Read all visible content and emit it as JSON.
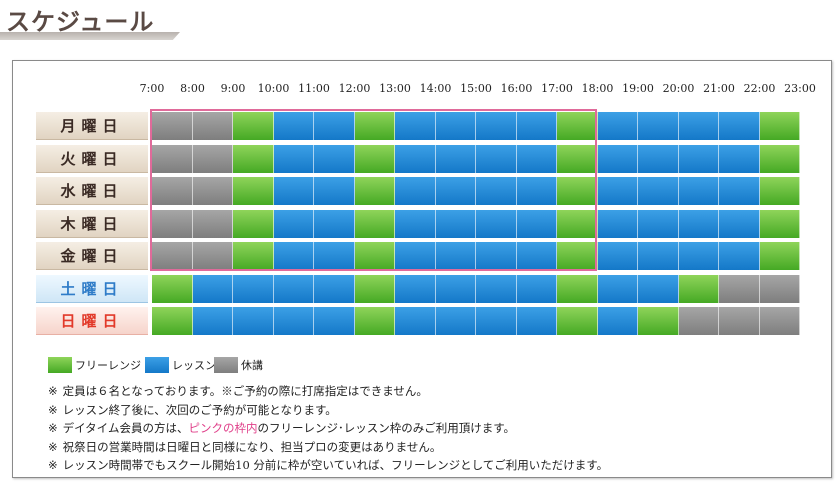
{
  "page": {
    "title": "スケジュール"
  },
  "hours": [
    "7:00",
    "8:00",
    "9:00",
    "10:00",
    "11:00",
    "12:00",
    "13:00",
    "14:00",
    "15:00",
    "16:00",
    "17:00",
    "18:00",
    "19:00",
    "20:00",
    "21:00",
    "22:00",
    "23:00"
  ],
  "days": [
    {
      "label": "月曜日",
      "type": "weekday",
      "slots": [
        "k",
        "k",
        "g",
        "b",
        "b",
        "g",
        "b",
        "b",
        "b",
        "b",
        "g",
        "b",
        "b",
        "b",
        "b",
        "g"
      ]
    },
    {
      "label": "火曜日",
      "type": "weekday",
      "slots": [
        "k",
        "k",
        "g",
        "b",
        "b",
        "g",
        "b",
        "b",
        "b",
        "b",
        "g",
        "b",
        "b",
        "b",
        "b",
        "g"
      ]
    },
    {
      "label": "水曜日",
      "type": "weekday",
      "slots": [
        "k",
        "k",
        "g",
        "b",
        "b",
        "g",
        "b",
        "b",
        "b",
        "b",
        "g",
        "b",
        "b",
        "b",
        "b",
        "g"
      ]
    },
    {
      "label": "木曜日",
      "type": "weekday",
      "slots": [
        "k",
        "k",
        "g",
        "b",
        "b",
        "g",
        "b",
        "b",
        "b",
        "b",
        "g",
        "b",
        "b",
        "b",
        "b",
        "g"
      ]
    },
    {
      "label": "金曜日",
      "type": "weekday",
      "slots": [
        "k",
        "k",
        "g",
        "b",
        "b",
        "g",
        "b",
        "b",
        "b",
        "b",
        "g",
        "b",
        "b",
        "b",
        "b",
        "g"
      ]
    },
    {
      "label": "土曜日",
      "type": "sat",
      "slots": [
        "g",
        "b",
        "b",
        "b",
        "b",
        "g",
        "b",
        "b",
        "b",
        "b",
        "g",
        "b",
        "b",
        "g",
        "k",
        "k"
      ]
    },
    {
      "label": "日曜日",
      "type": "sun",
      "slots": [
        "g",
        "b",
        "b",
        "b",
        "b",
        "g",
        "b",
        "b",
        "b",
        "b",
        "g",
        "b",
        "g",
        "k",
        "k",
        "k"
      ]
    }
  ],
  "legend": {
    "free_range": "フリーレンジ",
    "lesson": "レッスン",
    "closed": "休講"
  },
  "colors": {
    "free_range": "#5cbf35",
    "lesson": "#1e8ad8",
    "closed": "#8e8e8e",
    "pink_frame": "#e06a9a"
  },
  "notes": {
    "mark": "※",
    "n1": "定員は６名となっております。※ご予約の際に打席指定はできません。",
    "n2": "レッスン終了後に、次回のご予約が可能となります。",
    "n3_pre": "デイタイム会員の方は、",
    "n3_highlight": "ピンクの枠内",
    "n3_post": "のフリーレンジ･レッスン枠のみご利用頂けます。",
    "n4": "祝祭日の営業時間は日曜日と同様になり、担当プロの変更はありません。",
    "n5": "レッスン時間帯でもスクール開始10 分前に枠が空いていれば、フリーレンジとしてご利用いただけます。"
  }
}
